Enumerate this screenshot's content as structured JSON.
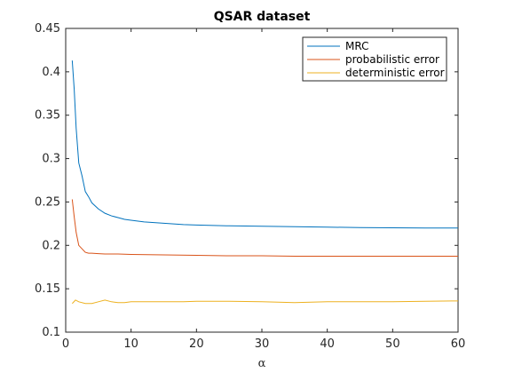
{
  "chart_data": {
    "type": "line",
    "title": "QSAR dataset",
    "xlabel": "α",
    "ylabel": "",
    "xlim": [
      0,
      60
    ],
    "ylim": [
      0.1,
      0.45
    ],
    "xticks": [
      0,
      10,
      20,
      30,
      40,
      50,
      60
    ],
    "yticks": [
      0.1,
      0.15,
      0.2,
      0.25,
      0.3,
      0.35,
      0.4,
      0.45
    ],
    "grid": false,
    "legend_position": "top-right",
    "series": [
      {
        "name": "MRC",
        "color": "#0072BD",
        "x": [
          1,
          1.3,
          1.6,
          2,
          2.5,
          3,
          3.5,
          4,
          5,
          6,
          7,
          8,
          9,
          10,
          12,
          14,
          16,
          18,
          20,
          25,
          30,
          35,
          40,
          45,
          50,
          55,
          60
        ],
        "y": [
          0.413,
          0.38,
          0.335,
          0.295,
          0.28,
          0.262,
          0.256,
          0.249,
          0.242,
          0.237,
          0.234,
          0.232,
          0.23,
          0.229,
          0.227,
          0.226,
          0.225,
          0.224,
          0.2235,
          0.2225,
          0.222,
          0.2215,
          0.221,
          0.2205,
          0.2203,
          0.22,
          0.22
        ]
      },
      {
        "name": "probabilistic error",
        "color": "#D95319",
        "x": [
          1,
          1.3,
          1.6,
          2,
          2.5,
          3,
          3.5,
          4,
          5,
          6,
          8,
          10,
          15,
          20,
          25,
          30,
          35,
          40,
          45,
          50,
          55,
          60
        ],
        "y": [
          0.253,
          0.233,
          0.215,
          0.2,
          0.196,
          0.192,
          0.191,
          0.191,
          0.1905,
          0.19,
          0.19,
          0.1895,
          0.189,
          0.1885,
          0.188,
          0.188,
          0.1875,
          0.1875,
          0.1875,
          0.1875,
          0.1875,
          0.1875
        ]
      },
      {
        "name": "deterministic error",
        "color": "#EDB120",
        "x": [
          1,
          1.5,
          2,
          3,
          4,
          5,
          6,
          7,
          8,
          9,
          10,
          12,
          15,
          18,
          20,
          25,
          30,
          35,
          40,
          45,
          50,
          55,
          60
        ],
        "y": [
          0.133,
          0.137,
          0.135,
          0.133,
          0.133,
          0.135,
          0.137,
          0.135,
          0.134,
          0.134,
          0.135,
          0.135,
          0.135,
          0.135,
          0.1355,
          0.1355,
          0.135,
          0.134,
          0.135,
          0.135,
          0.135,
          0.1355,
          0.136
        ]
      }
    ]
  }
}
